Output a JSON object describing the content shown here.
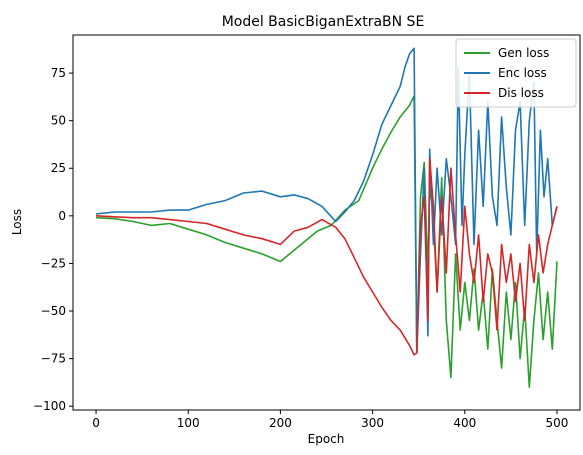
{
  "chart_data": {
    "type": "line",
    "title": "Model BasicBiganExtraBN SE",
    "xlabel": "Epoch",
    "ylabel": "Loss",
    "xlim": [
      -25,
      525
    ],
    "ylim": [
      -102,
      95
    ],
    "xticks": [
      0,
      100,
      200,
      300,
      400,
      500
    ],
    "yticks": [
      -100,
      -75,
      -50,
      -25,
      0,
      25,
      50,
      75
    ],
    "grid": false,
    "legend_position": "top-right",
    "series": [
      {
        "name": "Gen loss",
        "color": "#2ca02c",
        "points": [
          [
            0,
            -1
          ],
          [
            20,
            -1.5
          ],
          [
            40,
            -3
          ],
          [
            60,
            -5
          ],
          [
            80,
            -4
          ],
          [
            100,
            -7
          ],
          [
            120,
            -10
          ],
          [
            140,
            -14
          ],
          [
            160,
            -17
          ],
          [
            180,
            -20
          ],
          [
            200,
            -24
          ],
          [
            215,
            -18
          ],
          [
            225,
            -14
          ],
          [
            240,
            -8
          ],
          [
            255,
            -5
          ],
          [
            270,
            3
          ],
          [
            285,
            8
          ],
          [
            300,
            25
          ],
          [
            310,
            35
          ],
          [
            320,
            44
          ],
          [
            330,
            52
          ],
          [
            340,
            58
          ],
          [
            345,
            63
          ],
          [
            348,
            -72
          ],
          [
            352,
            10
          ],
          [
            356,
            28
          ],
          [
            360,
            -30
          ],
          [
            362,
            15
          ],
          [
            365,
            5
          ],
          [
            370,
            -40
          ],
          [
            375,
            20
          ],
          [
            380,
            -55
          ],
          [
            385,
            -85
          ],
          [
            390,
            -20
          ],
          [
            395,
            -60
          ],
          [
            400,
            -35
          ],
          [
            405,
            -55
          ],
          [
            410,
            -28
          ],
          [
            415,
            -60
          ],
          [
            420,
            -40
          ],
          [
            425,
            -70
          ],
          [
            430,
            -28
          ],
          [
            435,
            -55
          ],
          [
            440,
            -80
          ],
          [
            445,
            -40
          ],
          [
            450,
            -65
          ],
          [
            455,
            -35
          ],
          [
            460,
            -75
          ],
          [
            465,
            -48
          ],
          [
            470,
            -90
          ],
          [
            475,
            -55
          ],
          [
            480,
            -30
          ],
          [
            485,
            -65
          ],
          [
            490,
            -40
          ],
          [
            495,
            -70
          ],
          [
            500,
            -24
          ]
        ]
      },
      {
        "name": "Enc loss",
        "color": "#1f77b4",
        "points": [
          [
            0,
            1
          ],
          [
            20,
            2
          ],
          [
            40,
            2
          ],
          [
            60,
            2
          ],
          [
            80,
            3
          ],
          [
            100,
            3
          ],
          [
            120,
            6
          ],
          [
            140,
            8
          ],
          [
            160,
            12
          ],
          [
            180,
            13
          ],
          [
            200,
            10
          ],
          [
            215,
            11
          ],
          [
            230,
            9
          ],
          [
            245,
            5
          ],
          [
            260,
            -3
          ],
          [
            270,
            2
          ],
          [
            280,
            8
          ],
          [
            290,
            18
          ],
          [
            300,
            32
          ],
          [
            310,
            48
          ],
          [
            320,
            58
          ],
          [
            330,
            68
          ],
          [
            335,
            78
          ],
          [
            340,
            85
          ],
          [
            345,
            88
          ],
          [
            348,
            -72
          ],
          [
            352,
            -20
          ],
          [
            356,
            25
          ],
          [
            360,
            -63
          ],
          [
            362,
            35
          ],
          [
            366,
            -15
          ],
          [
            370,
            25
          ],
          [
            375,
            -10
          ],
          [
            380,
            30
          ],
          [
            385,
            10
          ],
          [
            390,
            -15
          ],
          [
            393,
            78
          ],
          [
            397,
            -5
          ],
          [
            400,
            32
          ],
          [
            405,
            75
          ],
          [
            410,
            -15
          ],
          [
            415,
            45
          ],
          [
            420,
            5
          ],
          [
            425,
            60
          ],
          [
            430,
            10
          ],
          [
            435,
            -5
          ],
          [
            440,
            52
          ],
          [
            445,
            15
          ],
          [
            450,
            -10
          ],
          [
            455,
            45
          ],
          [
            460,
            60
          ],
          [
            465,
            -5
          ],
          [
            470,
            50
          ],
          [
            475,
            70
          ],
          [
            478,
            -20
          ],
          [
            482,
            45
          ],
          [
            486,
            10
          ],
          [
            490,
            30
          ],
          [
            495,
            -5
          ],
          [
            500,
            5
          ]
        ]
      },
      {
        "name": "Dis loss",
        "color": "#d62728",
        "points": [
          [
            0,
            0
          ],
          [
            20,
            -0.5
          ],
          [
            40,
            -1
          ],
          [
            60,
            -1
          ],
          [
            80,
            -2
          ],
          [
            100,
            -3
          ],
          [
            120,
            -4
          ],
          [
            140,
            -7
          ],
          [
            160,
            -10
          ],
          [
            180,
            -12
          ],
          [
            200,
            -15
          ],
          [
            215,
            -8
          ],
          [
            230,
            -6
          ],
          [
            245,
            -2
          ],
          [
            260,
            -6
          ],
          [
            270,
            -12
          ],
          [
            280,
            -22
          ],
          [
            290,
            -32
          ],
          [
            300,
            -40
          ],
          [
            310,
            -48
          ],
          [
            320,
            -55
          ],
          [
            330,
            -60
          ],
          [
            340,
            -68
          ],
          [
            345,
            -73
          ],
          [
            348,
            -72
          ],
          [
            352,
            -5
          ],
          [
            356,
            10
          ],
          [
            360,
            -55
          ],
          [
            362,
            30
          ],
          [
            366,
            5
          ],
          [
            370,
            -40
          ],
          [
            375,
            10
          ],
          [
            380,
            -30
          ],
          [
            385,
            25
          ],
          [
            390,
            -10
          ],
          [
            395,
            -40
          ],
          [
            400,
            5
          ],
          [
            405,
            -20
          ],
          [
            410,
            -35
          ],
          [
            415,
            -10
          ],
          [
            420,
            -45
          ],
          [
            425,
            -20
          ],
          [
            430,
            -30
          ],
          [
            435,
            -60
          ],
          [
            440,
            -15
          ],
          [
            445,
            -35
          ],
          [
            450,
            -20
          ],
          [
            455,
            -45
          ],
          [
            460,
            -25
          ],
          [
            465,
            -55
          ],
          [
            470,
            -15
          ],
          [
            475,
            -35
          ],
          [
            480,
            -10
          ],
          [
            485,
            -30
          ],
          [
            490,
            -15
          ],
          [
            495,
            -5
          ],
          [
            500,
            5
          ]
        ]
      }
    ]
  }
}
